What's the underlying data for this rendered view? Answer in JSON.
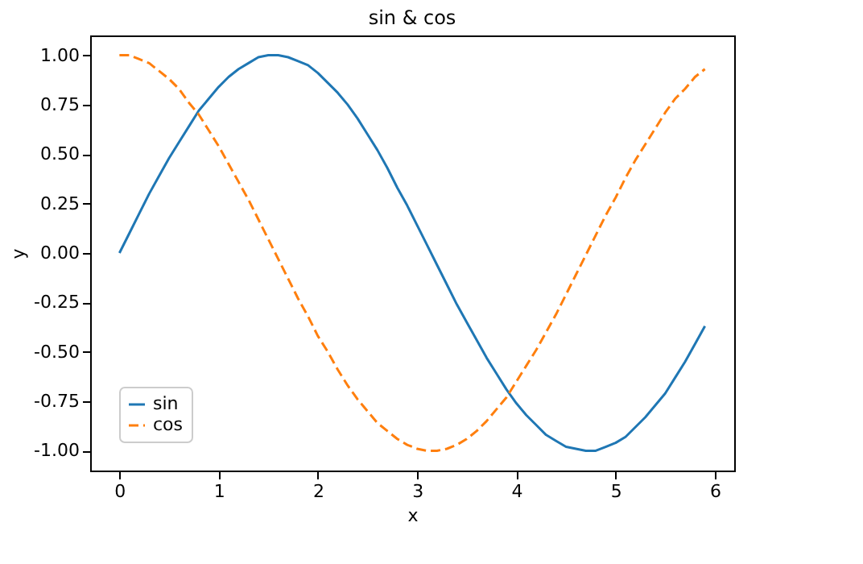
{
  "chart_data": {
    "type": "line",
    "title": "sin & cos",
    "xlabel": "x",
    "ylabel": "y",
    "x": [
      0,
      0.1,
      0.2,
      0.3,
      0.4,
      0.5,
      0.6,
      0.7,
      0.8,
      0.9,
      1.0,
      1.1,
      1.2,
      1.3,
      1.4,
      1.5,
      1.6,
      1.7,
      1.8,
      1.9,
      2.0,
      2.1,
      2.2,
      2.3,
      2.4,
      2.5,
      2.6,
      2.7,
      2.8,
      2.9,
      3.0,
      3.1,
      3.2,
      3.3,
      3.4,
      3.5,
      3.6,
      3.7,
      3.8,
      3.9,
      4.0,
      4.1,
      4.2,
      4.3,
      4.4,
      4.5,
      4.6,
      4.7,
      4.8,
      4.9,
      5.0,
      5.1,
      5.2,
      5.3,
      5.4,
      5.5,
      5.6,
      5.7,
      5.8,
      5.9
    ],
    "series": [
      {
        "name": "sin",
        "color": "#1f77b4",
        "line_style": "solid",
        "values": [
          0.0,
          0.1,
          0.2,
          0.3,
          0.39,
          0.48,
          0.56,
          0.64,
          0.72,
          0.78,
          0.84,
          0.89,
          0.93,
          0.96,
          0.99,
          1.0,
          1.0,
          0.99,
          0.97,
          0.95,
          0.91,
          0.86,
          0.81,
          0.75,
          0.68,
          0.6,
          0.52,
          0.43,
          0.33,
          0.24,
          0.14,
          0.04,
          -0.06,
          -0.16,
          -0.26,
          -0.35,
          -0.44,
          -0.53,
          -0.61,
          -0.69,
          -0.76,
          -0.82,
          -0.87,
          -0.92,
          -0.95,
          -0.98,
          -0.99,
          -1.0,
          -1.0,
          -0.98,
          -0.96,
          -0.93,
          -0.88,
          -0.83,
          -0.77,
          -0.71,
          -0.63,
          -0.55,
          -0.46,
          -0.37
        ]
      },
      {
        "name": "cos",
        "color": "#ff7f0e",
        "line_style": "dashed",
        "values": [
          1.0,
          1.0,
          0.98,
          0.96,
          0.92,
          0.88,
          0.83,
          0.76,
          0.7,
          0.62,
          0.54,
          0.45,
          0.36,
          0.27,
          0.17,
          0.07,
          -0.03,
          -0.13,
          -0.23,
          -0.32,
          -0.42,
          -0.5,
          -0.59,
          -0.67,
          -0.74,
          -0.8,
          -0.86,
          -0.9,
          -0.94,
          -0.97,
          -0.99,
          -1.0,
          -1.0,
          -0.99,
          -0.97,
          -0.94,
          -0.9,
          -0.85,
          -0.79,
          -0.73,
          -0.65,
          -0.57,
          -0.49,
          -0.4,
          -0.31,
          -0.21,
          -0.11,
          -0.01,
          0.09,
          0.19,
          0.28,
          0.38,
          0.47,
          0.55,
          0.63,
          0.71,
          0.78,
          0.83,
          0.89,
          0.93
        ]
      }
    ],
    "xlim": [
      -0.295,
      6.195
    ],
    "xticks": [
      0,
      1,
      2,
      3,
      4,
      5,
      6
    ],
    "ylim": [
      -1.1,
      1.1
    ],
    "yticks": [
      {
        "value": -1,
        "label": "-1.00"
      },
      {
        "value": -0.75,
        "label": "-0.75"
      },
      {
        "value": -0.5,
        "label": "-0.50"
      },
      {
        "value": -0.25,
        "label": "-0.25"
      },
      {
        "value": 0,
        "label": "0.00"
      },
      {
        "value": 0.25,
        "label": "0.25"
      },
      {
        "value": 0.5,
        "label": "0.50"
      },
      {
        "value": 0.75,
        "label": "0.75"
      },
      {
        "value": 1,
        "label": "1.00"
      }
    ],
    "grid": false,
    "legend": "bottom left",
    "marker": "none"
  }
}
